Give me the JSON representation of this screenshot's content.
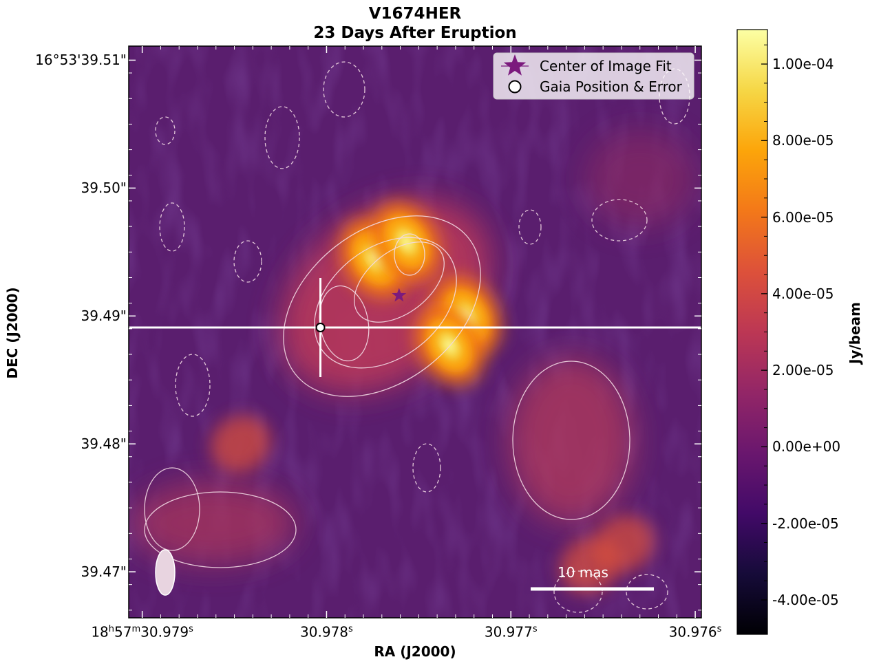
{
  "figure": {
    "title_line1": "V1674HER",
    "title_line2": "23 Days After Eruption",
    "xlabel": "RA (J2000)",
    "ylabel": "DEC (J2000)",
    "colorbar_label": "Jy/beam",
    "scale_bar_label": "10 mas",
    "colormap": "inferno",
    "contour_color": "#f2d9e3"
  },
  "legend": {
    "items": [
      {
        "label": "Center of Image Fit",
        "marker": "star",
        "color": "#7b1a7d"
      },
      {
        "label": "Gaia Position & Error",
        "marker": "circle-open",
        "color": "#000000"
      }
    ]
  },
  "chart_data": {
    "type": "heatmap",
    "x_ticks": [
      {
        "h": "18",
        "m": "57",
        "s": "30.979",
        "full": true
      },
      {
        "s": "30.978",
        "full": false
      },
      {
        "s": "30.977",
        "full": false
      },
      {
        "s": "30.976",
        "full": false
      }
    ],
    "y_ticks": [
      "16°53'39.51\"",
      "39.50\"",
      "39.49\"",
      "39.48\"",
      "39.47\""
    ],
    "colorbar_ticks": [
      "1.00e-04",
      "8.00e-05",
      "6.00e-05",
      "4.00e-05",
      "2.00e-05",
      "0.00e+00",
      "-2.00e-05",
      "-4.00e-05"
    ],
    "colorbar_values": [
      0.0001,
      8e-05,
      6e-05,
      4e-05,
      2e-05,
      0.0,
      -2e-05,
      -4e-05
    ],
    "colorbar_range": [
      -4.9e-05,
      0.000109
    ],
    "x_range_arcsec_offset": [
      -45.1,
      1.5
    ],
    "y_range_arcsec": [
      39.4664,
      39.5111
    ],
    "center_of_image_fit": {
      "ra_offset_mas": -23.1,
      "dec": 39.4916
    },
    "gaia_position": {
      "ra_offset_mas": -29.5,
      "dec": 39.4891,
      "err_ra_mas": 3.9,
      "err_dec_mas": 3.9
    },
    "emission_peaks": [
      {
        "ra_offset_mas": -25.1,
        "dec": 39.4945,
        "peak": 0.000106
      },
      {
        "ra_offset_mas": -22.5,
        "dec": 39.4958,
        "peak": 9.5e-05
      },
      {
        "ra_offset_mas": -17.6,
        "dec": 39.49,
        "peak": 9.8e-05
      },
      {
        "ra_offset_mas": -19.0,
        "dec": 39.4877,
        "peak": 8.8e-05
      },
      {
        "ra_offset_mas": -36.0,
        "dec": 39.48,
        "peak": 5e-05
      },
      {
        "ra_offset_mas": -7.6,
        "dec": 39.4705,
        "peak": 3.5e-05
      },
      {
        "ra_offset_mas": -4.8,
        "dec": 39.4722,
        "peak": 4e-05
      }
    ]
  }
}
